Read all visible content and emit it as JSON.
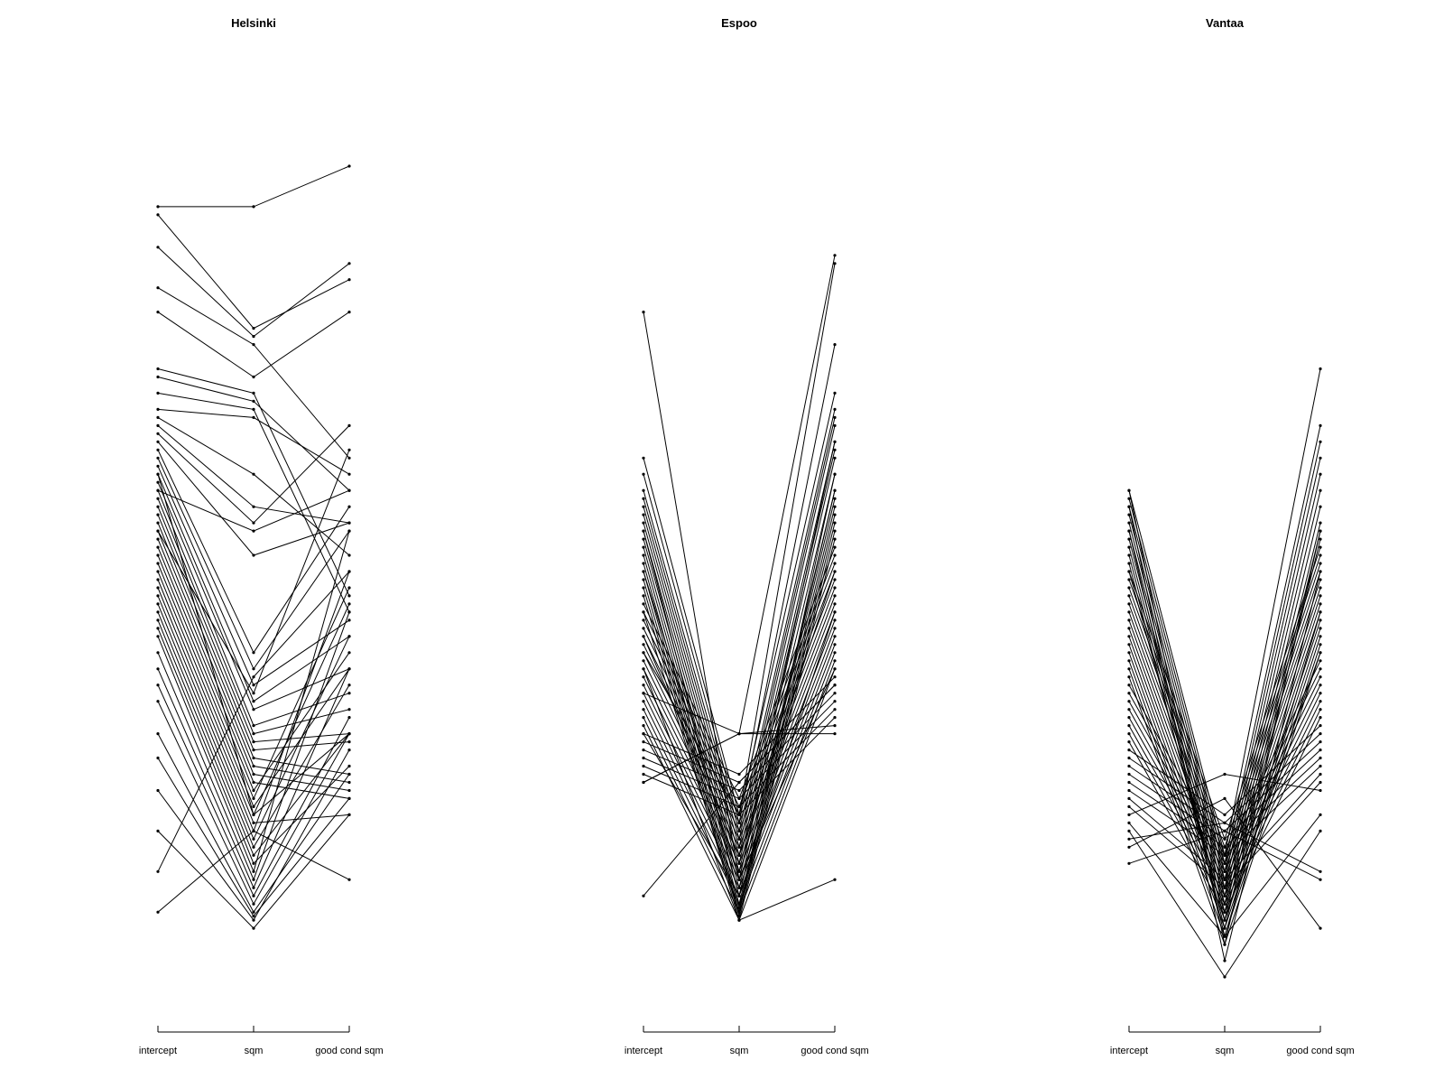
{
  "chart_data": [
    {
      "type": "parallel-coordinates",
      "title": "Helsinki",
      "axes": [
        "intercept",
        "sqm",
        "good cond sqm"
      ],
      "grid": false,
      "legend": "none",
      "ylim": [
        0,
        1
      ],
      "points": [
        [
          0.95,
          0.95,
          1.0
        ],
        [
          0.94,
          0.8,
          0.86
        ],
        [
          0.9,
          0.79,
          0.88
        ],
        [
          0.85,
          0.78,
          0.64
        ],
        [
          0.82,
          0.74,
          0.82
        ],
        [
          0.75,
          0.72,
          0.47
        ],
        [
          0.74,
          0.71,
          0.6
        ],
        [
          0.72,
          0.7,
          0.45
        ],
        [
          0.7,
          0.69,
          0.62
        ],
        [
          0.69,
          0.62,
          0.52
        ],
        [
          0.68,
          0.58,
          0.56
        ],
        [
          0.67,
          0.56,
          0.68
        ],
        [
          0.66,
          0.52,
          0.56
        ],
        [
          0.65,
          0.4,
          0.58
        ],
        [
          0.64,
          0.38,
          0.55
        ],
        [
          0.63,
          0.36,
          0.44
        ],
        [
          0.62,
          0.34,
          0.42
        ],
        [
          0.61,
          0.33,
          0.38
        ],
        [
          0.6,
          0.31,
          0.35
        ],
        [
          0.59,
          0.3,
          0.33
        ],
        [
          0.58,
          0.29,
          0.3
        ],
        [
          0.57,
          0.28,
          0.29
        ],
        [
          0.56,
          0.27,
          0.25
        ],
        [
          0.55,
          0.26,
          0.24
        ],
        [
          0.54,
          0.25,
          0.23
        ],
        [
          0.53,
          0.24,
          0.22
        ],
        [
          0.52,
          0.23,
          0.4
        ],
        [
          0.51,
          0.22,
          0.48
        ],
        [
          0.5,
          0.21,
          0.38
        ],
        [
          0.49,
          0.2,
          0.3
        ],
        [
          0.48,
          0.19,
          0.2
        ],
        [
          0.47,
          0.18,
          0.5
        ],
        [
          0.46,
          0.17,
          0.42
        ],
        [
          0.45,
          0.16,
          0.36
        ],
        [
          0.44,
          0.15,
          0.3
        ],
        [
          0.43,
          0.14,
          0.26
        ],
        [
          0.42,
          0.13,
          0.55
        ],
        [
          0.4,
          0.12,
          0.45
        ],
        [
          0.38,
          0.11,
          0.38
        ],
        [
          0.36,
          0.1,
          0.32
        ],
        [
          0.34,
          0.09,
          0.3
        ],
        [
          0.3,
          0.08,
          0.25
        ],
        [
          0.27,
          0.075,
          0.22
        ],
        [
          0.23,
          0.07,
          0.28
        ],
        [
          0.18,
          0.06,
          0.2
        ],
        [
          0.13,
          0.37,
          0.5
        ],
        [
          0.08,
          0.18,
          0.12
        ],
        [
          0.6,
          0.55,
          0.6
        ],
        [
          0.55,
          0.35,
          0.65
        ],
        [
          0.62,
          0.2,
          0.46
        ]
      ]
    },
    {
      "type": "parallel-coordinates",
      "title": "Espoo",
      "axes": [
        "intercept",
        "sqm",
        "good cond sqm"
      ],
      "grid": false,
      "legend": "none",
      "ylim": [
        0,
        1
      ],
      "points": [
        [
          0.82,
          0.12,
          0.38
        ],
        [
          0.64,
          0.2,
          0.88
        ],
        [
          0.62,
          0.19,
          0.78
        ],
        [
          0.6,
          0.18,
          0.7
        ],
        [
          0.59,
          0.17,
          0.69
        ],
        [
          0.58,
          0.16,
          0.68
        ],
        [
          0.57,
          0.15,
          0.66
        ],
        [
          0.56,
          0.14,
          0.65
        ],
        [
          0.55,
          0.13,
          0.64
        ],
        [
          0.54,
          0.12,
          0.62
        ],
        [
          0.53,
          0.11,
          0.6
        ],
        [
          0.52,
          0.1,
          0.59
        ],
        [
          0.51,
          0.09,
          0.58
        ],
        [
          0.5,
          0.085,
          0.57
        ],
        [
          0.49,
          0.08,
          0.56
        ],
        [
          0.48,
          0.075,
          0.55
        ],
        [
          0.47,
          0.07,
          0.54
        ],
        [
          0.46,
          0.22,
          0.53
        ],
        [
          0.45,
          0.21,
          0.52
        ],
        [
          0.44,
          0.2,
          0.51
        ],
        [
          0.43,
          0.19,
          0.5
        ],
        [
          0.42,
          0.18,
          0.49
        ],
        [
          0.41,
          0.17,
          0.48
        ],
        [
          0.4,
          0.16,
          0.47
        ],
        [
          0.39,
          0.15,
          0.46
        ],
        [
          0.38,
          0.14,
          0.45
        ],
        [
          0.37,
          0.13,
          0.44
        ],
        [
          0.36,
          0.12,
          0.43
        ],
        [
          0.35,
          0.11,
          0.42
        ],
        [
          0.34,
          0.1,
          0.41
        ],
        [
          0.33,
          0.09,
          0.4
        ],
        [
          0.32,
          0.08,
          0.39
        ],
        [
          0.31,
          0.07,
          0.38
        ],
        [
          0.3,
          0.25,
          0.37
        ],
        [
          0.29,
          0.24,
          0.36
        ],
        [
          0.28,
          0.23,
          0.35
        ],
        [
          0.27,
          0.22,
          0.34
        ],
        [
          0.26,
          0.21,
          0.33
        ],
        [
          0.25,
          0.2,
          0.32
        ],
        [
          0.24,
          0.3,
          0.31
        ],
        [
          0.24,
          0.3,
          0.3
        ],
        [
          0.1,
          0.24,
          0.36
        ],
        [
          0.4,
          0.2,
          0.72
        ],
        [
          0.35,
          0.3,
          0.89
        ],
        [
          0.5,
          0.12,
          0.66
        ],
        [
          0.55,
          0.1,
          0.6
        ],
        [
          0.45,
          0.08,
          0.62
        ],
        [
          0.38,
          0.07,
          0.12
        ],
        [
          0.42,
          0.15,
          0.5
        ],
        [
          0.3,
          0.1,
          0.45
        ]
      ]
    },
    {
      "type": "parallel-coordinates",
      "title": "Vantaa",
      "axes": [
        "intercept",
        "sqm",
        "good cond sqm"
      ],
      "grid": false,
      "legend": "none",
      "ylim": [
        0,
        1
      ],
      "points": [
        [
          0.6,
          0.15,
          0.75
        ],
        [
          0.59,
          0.14,
          0.68
        ],
        [
          0.58,
          0.13,
          0.66
        ],
        [
          0.57,
          0.12,
          0.64
        ],
        [
          0.56,
          0.11,
          0.62
        ],
        [
          0.55,
          0.1,
          0.6
        ],
        [
          0.54,
          0.09,
          0.58
        ],
        [
          0.53,
          0.08,
          0.56
        ],
        [
          0.52,
          0.07,
          0.55
        ],
        [
          0.51,
          0.06,
          0.54
        ],
        [
          0.5,
          0.17,
          0.53
        ],
        [
          0.49,
          0.16,
          0.52
        ],
        [
          0.48,
          0.15,
          0.51
        ],
        [
          0.47,
          0.14,
          0.5
        ],
        [
          0.46,
          0.13,
          0.49
        ],
        [
          0.45,
          0.12,
          0.48
        ],
        [
          0.44,
          0.11,
          0.47
        ],
        [
          0.43,
          0.1,
          0.46
        ],
        [
          0.42,
          0.09,
          0.45
        ],
        [
          0.41,
          0.08,
          0.44
        ],
        [
          0.4,
          0.07,
          0.43
        ],
        [
          0.39,
          0.06,
          0.42
        ],
        [
          0.38,
          0.05,
          0.41
        ],
        [
          0.37,
          0.04,
          0.4
        ],
        [
          0.36,
          0.15,
          0.39
        ],
        [
          0.35,
          0.14,
          0.38
        ],
        [
          0.34,
          0.13,
          0.37
        ],
        [
          0.33,
          0.12,
          0.36
        ],
        [
          0.32,
          0.11,
          0.35
        ],
        [
          0.31,
          0.1,
          0.34
        ],
        [
          0.3,
          0.09,
          0.33
        ],
        [
          0.29,
          0.08,
          0.32
        ],
        [
          0.28,
          0.2,
          0.31
        ],
        [
          0.27,
          0.19,
          0.3
        ],
        [
          0.26,
          0.18,
          0.29
        ],
        [
          0.25,
          0.17,
          0.28
        ],
        [
          0.24,
          0.16,
          0.27
        ],
        [
          0.23,
          0.15,
          0.26
        ],
        [
          0.22,
          0.12,
          0.25
        ],
        [
          0.21,
          0.11,
          0.24
        ],
        [
          0.2,
          0.25,
          0.23
        ],
        [
          0.19,
          0.05,
          0.2
        ],
        [
          0.18,
          0.0,
          0.18
        ],
        [
          0.17,
          0.19,
          0.13
        ],
        [
          0.16,
          0.22,
          0.06
        ],
        [
          0.14,
          0.18,
          0.12
        ],
        [
          0.6,
          0.04,
          0.55
        ],
        [
          0.58,
          0.02,
          0.5
        ],
        [
          0.55,
          0.05,
          0.45
        ],
        [
          0.5,
          0.07,
          0.4
        ]
      ]
    }
  ]
}
